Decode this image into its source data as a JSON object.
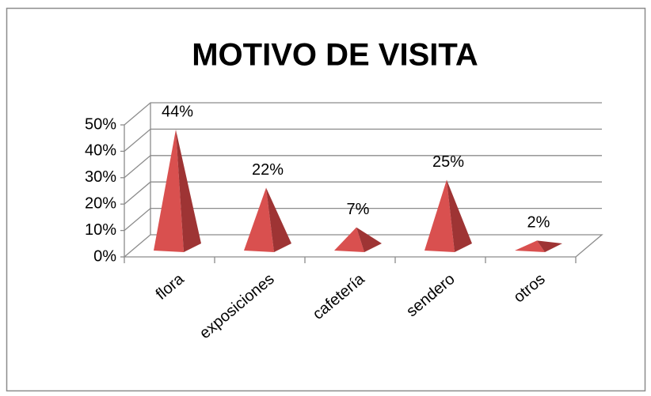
{
  "chart_data": {
    "type": "pyramid3d",
    "title": "MOTIVO DE VISITA",
    "categories": [
      "flora",
      "exposiciones",
      "cafetería",
      "sendero",
      "otros"
    ],
    "values": [
      44,
      22,
      7,
      25,
      2
    ],
    "value_labels": [
      "44%",
      "22%",
      "7%",
      "25%",
      "2%"
    ],
    "color": "#d9504f",
    "ylim": [
      0,
      50
    ],
    "yticks": [
      {
        "value": 0,
        "label": "0%"
      },
      {
        "value": 10,
        "label": "10%"
      },
      {
        "value": 20,
        "label": "20%"
      },
      {
        "value": 30,
        "label": "30%"
      },
      {
        "value": 40,
        "label": "40%"
      },
      {
        "value": 50,
        "label": "50%"
      }
    ],
    "grid": true
  }
}
